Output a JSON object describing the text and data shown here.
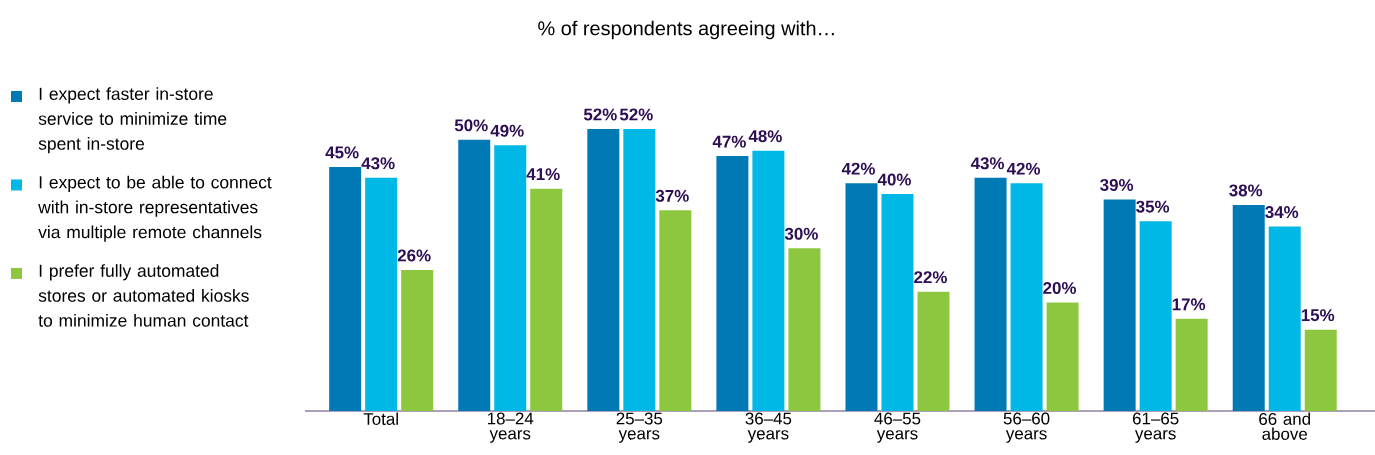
{
  "chart_data": {
    "type": "bar",
    "title": "% of respondents agreeing with…",
    "categories": [
      "Total",
      "18–24 years",
      "25–35 years",
      "36–45 years",
      "46–55 years",
      "56–60 years",
      "61–65 years",
      "66 and above"
    ],
    "series": [
      {
        "name": "I expect faster in-store service to minimize time spent in-store",
        "color": "#0079b5",
        "values": [
          45,
          50,
          52,
          47,
          42,
          43,
          39,
          38
        ],
        "value_labels": [
          "45%",
          "50%",
          "52%",
          "47%",
          "42%",
          "43%",
          "39%",
          "38%"
        ]
      },
      {
        "name": "I expect to be able to connect with in-store representatives via multiple remote channels",
        "color": "#00b8e6",
        "values": [
          43,
          49,
          52,
          48,
          40,
          42,
          35,
          34
        ],
        "value_labels": [
          "43%",
          "49%",
          "52%",
          "48%",
          "40%",
          "42%",
          "35%",
          "34%"
        ]
      },
      {
        "name": "I prefer fully automated stores or automated kiosks to minimize human contact",
        "color": "#8dc63f",
        "values": [
          26,
          41,
          37,
          30,
          22,
          20,
          17,
          15
        ],
        "value_labels": [
          "26%",
          "41%",
          "37%",
          "30%",
          "22%",
          "20%",
          "17%",
          "15%"
        ]
      }
    ],
    "legend": "left"
  }
}
